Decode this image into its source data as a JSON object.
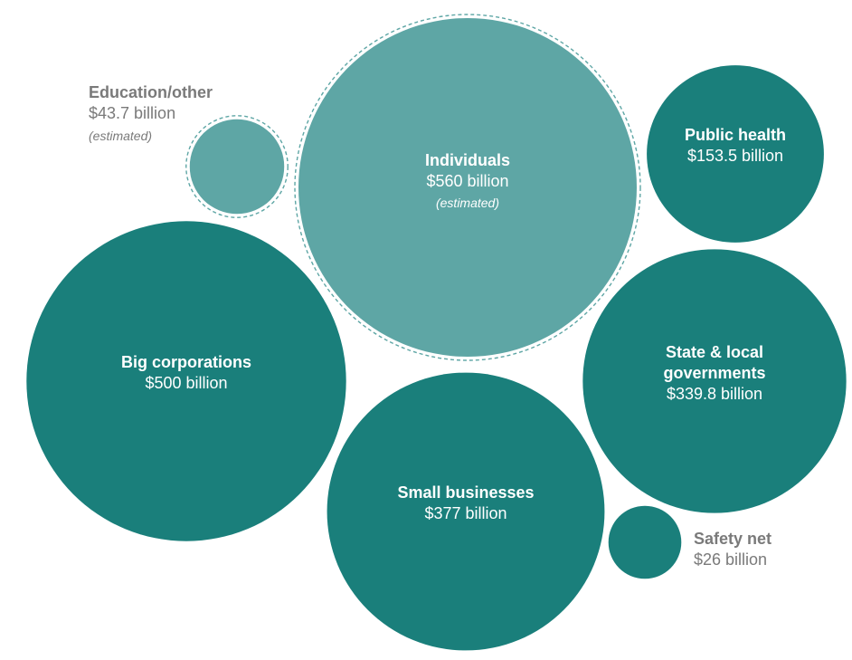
{
  "chart_data": {
    "type": "bubble",
    "title": "",
    "unit": "billion USD",
    "colors": {
      "dark": "#1a7f7b",
      "light": "#5ea6a5",
      "dashed_outline": "#5ea6a5",
      "outside_label": "#7a7a7a",
      "inside_label": "#ffffff"
    },
    "bubbles": [
      {
        "name": "Individuals",
        "value": 560,
        "value_label": "$560 billion",
        "note": "(estimated)",
        "estimated": true
      },
      {
        "name": "Big corporations",
        "value": 500,
        "value_label": "$500 billion",
        "estimated": false
      },
      {
        "name": "Small businesses",
        "value": 377,
        "value_label": "$377 billion",
        "estimated": false
      },
      {
        "name": "State & local governments",
        "name_lines": [
          "State & local",
          "governments"
        ],
        "value": 339.8,
        "value_label": "$339.8 billion",
        "estimated": false
      },
      {
        "name": "Public health",
        "value": 153.5,
        "value_label": "$153.5 billion",
        "estimated": false
      },
      {
        "name": "Education/other",
        "value": 43.7,
        "value_label": "$43.7 billion",
        "note": "(estimated)",
        "estimated": true
      },
      {
        "name": "Safety net",
        "value": 26,
        "value_label": "$26 billion",
        "estimated": false
      }
    ]
  }
}
